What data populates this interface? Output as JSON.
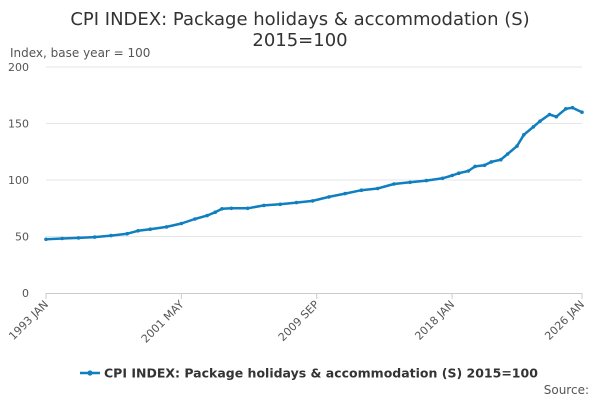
{
  "chart_data": {
    "type": "line",
    "title": [
      "CPI INDEX: Package holidays & accommodation (S)",
      "2015=100"
    ],
    "ylabel": "Index, base year = 100",
    "xlabel": "",
    "ylim": [
      0,
      200
    ],
    "yticks": [
      0,
      50,
      100,
      150,
      200
    ],
    "xlim": [
      "1993-01",
      "2026-01"
    ],
    "xticks": [
      {
        "label": "1993 JAN",
        "date": "1993-01"
      },
      {
        "label": "2001 MAY",
        "date": "2001-05"
      },
      {
        "label": "2009 SEP",
        "date": "2009-09"
      },
      {
        "label": "2018 JAN",
        "date": "2018-01"
      },
      {
        "label": "2026 JAN",
        "date": "2026-01"
      }
    ],
    "grid": true,
    "legend_position": "bottom",
    "line_color": "#0f7fc0",
    "series": [
      {
        "name": "CPI INDEX: Package holidays & accommodation (S) 2015=100",
        "points": [
          [
            "1993-01",
            47.5
          ],
          [
            "1994-01",
            48.2
          ],
          [
            "1995-01",
            48.8
          ],
          [
            "1996-01",
            49.5
          ],
          [
            "1997-01",
            50.8
          ],
          [
            "1998-01",
            52.5
          ],
          [
            "1998-09",
            55.0
          ],
          [
            "1999-06",
            56.5
          ],
          [
            "2000-06",
            58.5
          ],
          [
            "2001-05",
            61.5
          ],
          [
            "2002-03",
            65.5
          ],
          [
            "2002-12",
            68.5
          ],
          [
            "2003-06",
            71.5
          ],
          [
            "2003-11",
            74.5
          ],
          [
            "2004-06",
            75.0
          ],
          [
            "2005-06",
            75.0
          ],
          [
            "2006-06",
            77.5
          ],
          [
            "2007-06",
            78.5
          ],
          [
            "2008-06",
            80.0
          ],
          [
            "2009-06",
            81.5
          ],
          [
            "2010-06",
            85.0
          ],
          [
            "2011-06",
            88.0
          ],
          [
            "2012-06",
            91.0
          ],
          [
            "2013-06",
            92.5
          ],
          [
            "2014-06",
            96.5
          ],
          [
            "2015-06",
            98.0
          ],
          [
            "2016-06",
            99.5
          ],
          [
            "2017-06",
            101.5
          ],
          [
            "2018-01",
            104.0
          ],
          [
            "2018-06",
            106.0
          ],
          [
            "2019-01",
            108.0
          ],
          [
            "2019-06",
            112.0
          ],
          [
            "2020-01",
            113.0
          ],
          [
            "2020-06",
            116.0
          ],
          [
            "2021-01",
            118.0
          ],
          [
            "2021-06",
            123.0
          ],
          [
            "2022-01",
            130.0
          ],
          [
            "2022-06",
            140.0
          ],
          [
            "2023-01",
            147.0
          ],
          [
            "2023-06",
            152.0
          ],
          [
            "2024-01",
            158.0
          ],
          [
            "2024-06",
            156.0
          ],
          [
            "2025-01",
            163.0
          ],
          [
            "2025-06",
            164.0
          ],
          [
            "2026-01",
            160.0
          ]
        ]
      }
    ]
  },
  "footer": {
    "source_label": "Source:"
  }
}
